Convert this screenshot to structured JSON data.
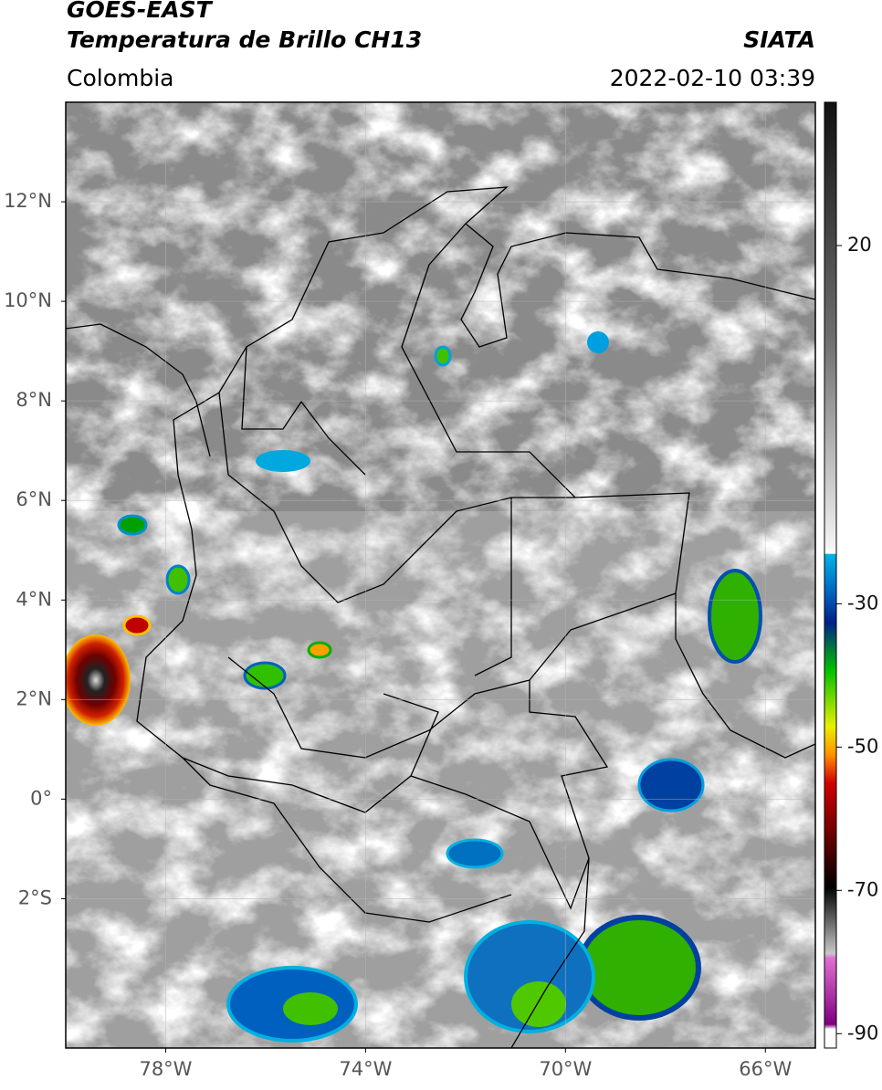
{
  "header": {
    "title": "GOES-EAST",
    "subtitle": "Temperatura de Brillo CH13",
    "source": "SIATA",
    "region": "Colombia",
    "datetime": "2022-02-10 03:39"
  },
  "map": {
    "lonlim": [
      -80,
      -65
    ],
    "latlim": [
      -5,
      14
    ],
    "lonticks": [
      {
        "value": -78,
        "label": "78°W"
      },
      {
        "value": -74,
        "label": "74°W"
      },
      {
        "value": -70,
        "label": "70°W"
      },
      {
        "value": -66,
        "label": "66°W"
      }
    ],
    "latticks": [
      {
        "value": 12,
        "label": "12°N"
      },
      {
        "value": 10,
        "label": "10°N"
      },
      {
        "value": 8,
        "label": "8°N"
      },
      {
        "value": 6,
        "label": "6°N"
      },
      {
        "value": 4,
        "label": "4°N"
      },
      {
        "value": 2,
        "label": "2°N"
      },
      {
        "value": 0,
        "label": "0°"
      },
      {
        "value": -2,
        "label": "2°S"
      }
    ],
    "grid": true
  },
  "colorbar": {
    "lim": [
      -92,
      40
    ],
    "ticks": [
      20,
      -30,
      -50,
      -70,
      -90
    ]
  }
}
